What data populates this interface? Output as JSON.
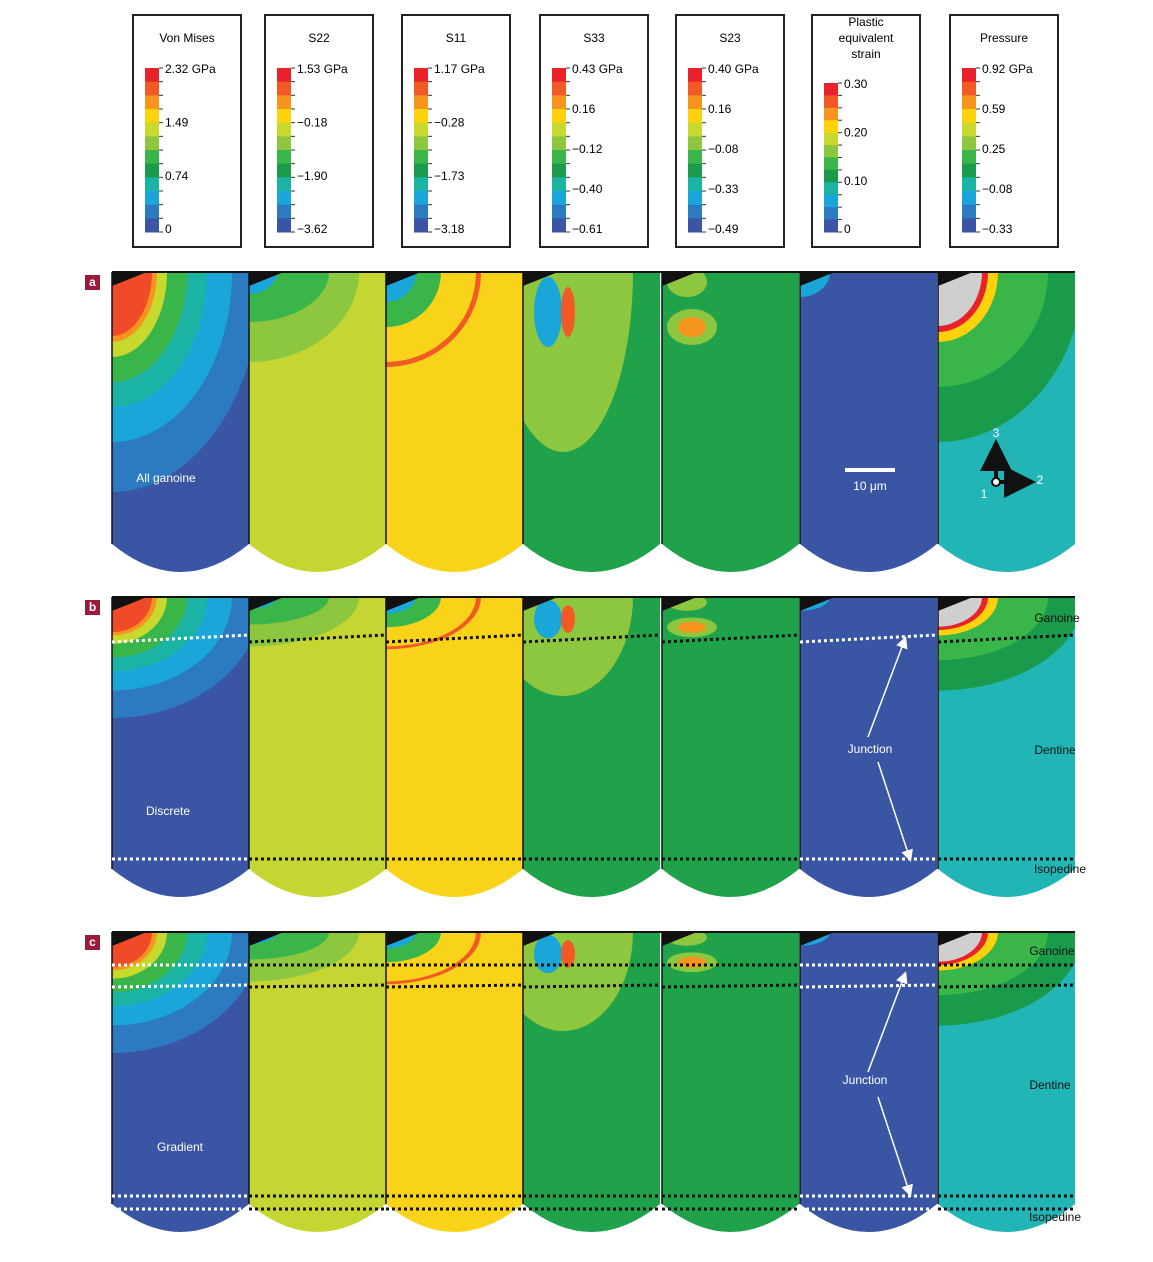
{
  "legends": [
    {
      "title": [
        "Von Mises"
      ],
      "labels": [
        "2.32 GPa",
        "1.49",
        "0.74",
        "0"
      ]
    },
    {
      "title": [
        "S22"
      ],
      "labels": [
        "1.53 GPa",
        "−0.18",
        "−1.90",
        "−3.62"
      ]
    },
    {
      "title": [
        "S11"
      ],
      "labels": [
        "1.17 GPa",
        "−0.28",
        "−1.73",
        "−3.18"
      ]
    },
    {
      "title": [
        "S33"
      ],
      "labels": [
        "0.43 GPa",
        "0.16",
        "−0.12",
        "−0.40",
        "−0.61"
      ]
    },
    {
      "title": [
        "S23"
      ],
      "labels": [
        "0.40 GPa",
        "0.16",
        "−0.08",
        "−0.33",
        "−0.49"
      ]
    },
    {
      "title": [
        "Plastic",
        "equivalent",
        "strain"
      ],
      "labels": [
        "0.30",
        "0.20",
        "0.10",
        "0"
      ]
    },
    {
      "title": [
        "Pressure"
      ],
      "labels": [
        "0.92 GPa",
        "0.59",
        "0.25",
        "−0.08",
        "−0.33"
      ]
    }
  ],
  "rows": [
    {
      "label": "a",
      "notes": [
        "All ganoine",
        "10 μm",
        "3",
        "2",
        "1"
      ]
    },
    {
      "label": "b",
      "notes": [
        "Discrete",
        "Junction",
        "Ganoine",
        "Dentine",
        "Isopedine"
      ]
    },
    {
      "label": "c",
      "notes": [
        "Gradient",
        "Junction",
        "Ganoine",
        "Dentine",
        "Isopedine"
      ]
    }
  ]
}
